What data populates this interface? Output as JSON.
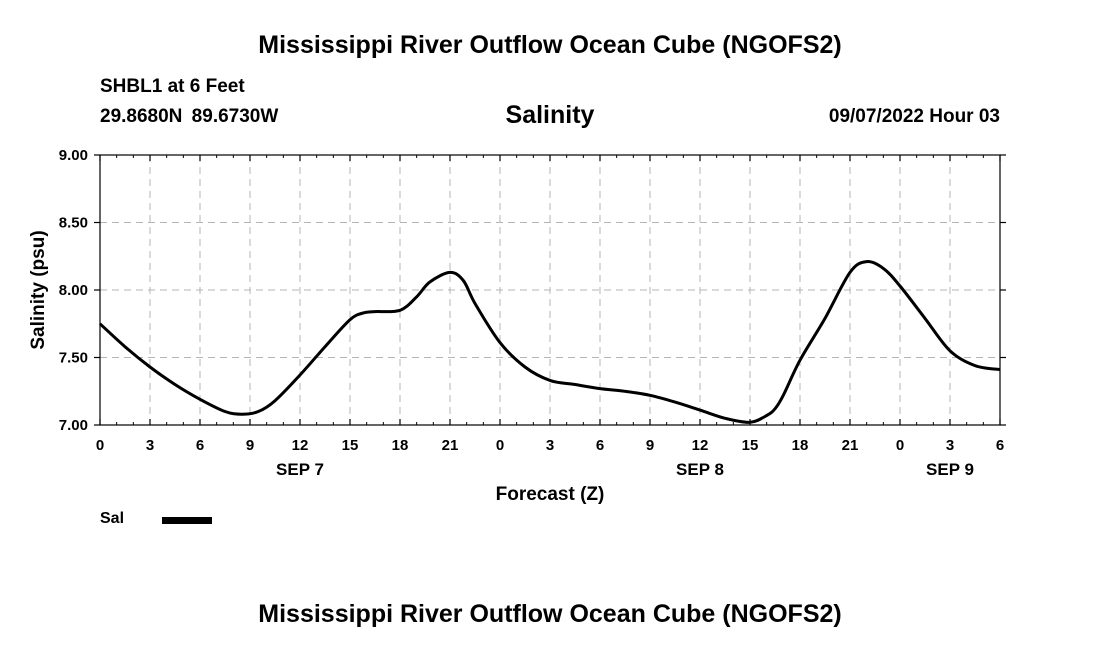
{
  "header": {
    "title": "Mississippi River Outflow Ocean Cube (NGOFS2)",
    "station": "SHBL1 at 6 Feet",
    "coordinates": "29.8680N 89.6730W",
    "forecast_time": "09/07/2022 Hour 03",
    "footer_title": "Mississippi River Outflow Ocean Cube (NGOFS2)"
  },
  "legend": {
    "entries": [
      {
        "label": "Sal",
        "color": "#000000"
      }
    ],
    "placement": "bottom-left"
  },
  "chart_data": {
    "type": "line",
    "title": "Salinity",
    "xlabel": "Forecast (Z)",
    "ylabel": "Salinity (psu)",
    "xlim": [
      0,
      54
    ],
    "ylim": [
      7.0,
      9.0
    ],
    "grid": true,
    "x_ticks": [
      0,
      3,
      6,
      9,
      12,
      15,
      18,
      21,
      24,
      27,
      30,
      33,
      36,
      39,
      42,
      45,
      48,
      51,
      54
    ],
    "x_tick_labels": [
      "0",
      "3",
      "6",
      "9",
      "12",
      "15",
      "18",
      "21",
      "0",
      "3",
      "6",
      "9",
      "12",
      "15",
      "18",
      "21",
      "0",
      "3",
      "6"
    ],
    "y_ticks": [
      7.0,
      7.5,
      8.0,
      8.5,
      9.0
    ],
    "y_tick_labels": [
      "7.00",
      "7.50",
      "8.00",
      "8.50",
      "9.00"
    ],
    "day_labels": [
      {
        "label": "SEP 7",
        "x": 12
      },
      {
        "label": "SEP 8",
        "x": 36
      },
      {
        "label": "SEP 9",
        "x": 51
      }
    ],
    "series": [
      {
        "name": "Sal",
        "color": "#000000",
        "x": [
          0,
          1.5,
          3,
          4.5,
          6,
          7.5,
          8.5,
          9.5,
          10.5,
          12,
          13.5,
          15,
          15.8,
          16.5,
          18,
          19,
          19.8,
          21,
          21.8,
          22.5,
          24,
          25.5,
          27,
          28.5,
          30,
          31.5,
          33,
          34.5,
          36,
          37.5,
          39,
          40,
          40.5,
          41,
          42,
          43.5,
          45,
          46,
          47,
          48,
          49.5,
          51,
          52.5,
          54
        ],
        "values": [
          7.75,
          7.58,
          7.43,
          7.3,
          7.19,
          7.1,
          7.08,
          7.1,
          7.18,
          7.37,
          7.58,
          7.78,
          7.83,
          7.84,
          7.85,
          7.95,
          8.06,
          8.13,
          8.07,
          7.9,
          7.61,
          7.43,
          7.33,
          7.3,
          7.27,
          7.25,
          7.22,
          7.17,
          7.11,
          7.05,
          7.02,
          7.07,
          7.12,
          7.22,
          7.48,
          7.79,
          8.13,
          8.21,
          8.16,
          8.03,
          7.79,
          7.55,
          7.44,
          7.41
        ]
      }
    ]
  }
}
